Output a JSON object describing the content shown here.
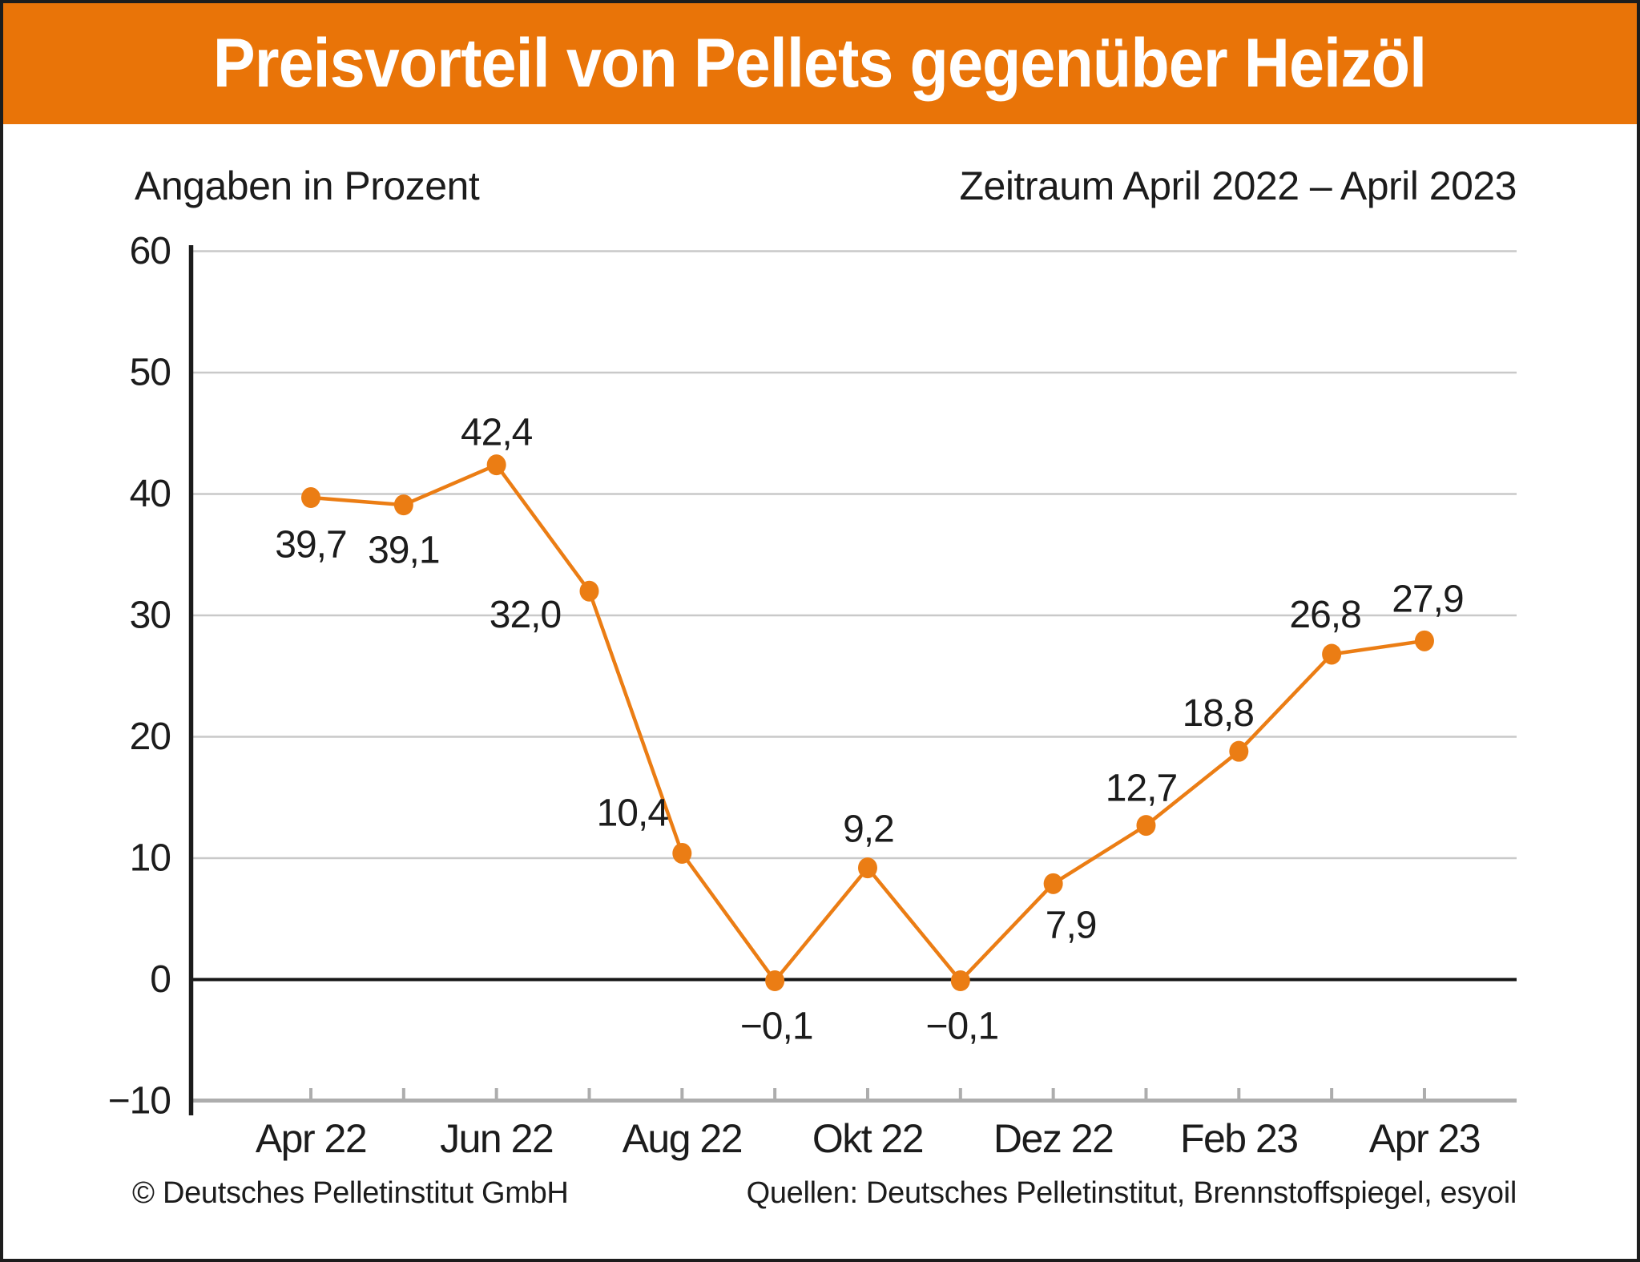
{
  "header": {
    "title": "Preisvorteil von Pellets gegenüber Heizöl"
  },
  "subtitle_left": "Angaben in Prozent",
  "subtitle_right": "Zeitraum April 2022 – April 2023",
  "footer": {
    "copyright": "© Deutsches Pelletinstitut GmbH",
    "sources": "Quellen: Deutsches Pelletinstitut, Brennstoffspiegel, esyoil"
  },
  "colors": {
    "header_bg": "#E97408",
    "line": "#EB7D14",
    "grid": "#C9C9C9",
    "axis_gray": "#ADADAD",
    "zero_line": "#161616",
    "y_axis_line": "#1C1C1C",
    "text": "#1C1C1C",
    "title_text": "#FFFFFF"
  },
  "chart_data": {
    "type": "line",
    "title": "Preisvorteil von Pellets gegenüber Heizöl",
    "unit_note": "Angaben in Prozent",
    "period": "Zeitraum April 2022 – April 2023",
    "months_count": 13,
    "values": [
      39.7,
      39.1,
      42.4,
      32.0,
      10.4,
      -0.1,
      9.2,
      -0.1,
      7.9,
      12.7,
      18.8,
      26.8,
      27.9
    ],
    "point_labels": [
      "39,7",
      "39,1",
      "42,4",
      "32,0",
      "10,4",
      "−0,1",
      "9,2",
      "−0,1",
      "7,9",
      "12,7",
      "18,8",
      "26,8",
      "27,9"
    ],
    "x_tick_labels": [
      "Apr 22",
      "Jun 22",
      "Aug 22",
      "Okt 22",
      "Dez 22",
      "Feb 23",
      "Apr 23"
    ],
    "x_labeled_indices": [
      0,
      2,
      4,
      6,
      8,
      10,
      12
    ],
    "y_ticks": [
      60,
      50,
      40,
      30,
      20,
      10,
      0,
      -10
    ],
    "y_tick_labels": [
      "60",
      "50",
      "40",
      "30",
      "20",
      "10",
      "0",
      "−10"
    ],
    "ylim": [
      -10,
      60
    ],
    "grid": "horizontal",
    "legend": "none"
  }
}
